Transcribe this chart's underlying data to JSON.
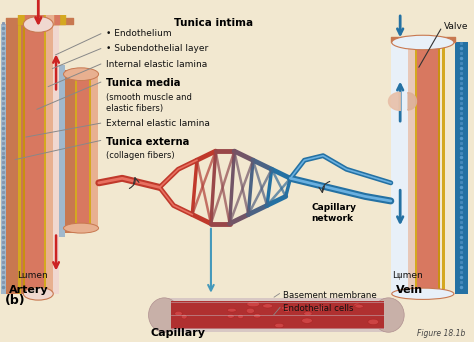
{
  "bg_color": "#f2e8d0",
  "figure_label": "(b)",
  "figure_ref": "Figure 18.1b",
  "labels": {
    "tunica_intima": "Tunica intima",
    "endothelium": "• Endothelium",
    "subendothelial": "• Subendothelial layer",
    "internal_elastic": "Internal elastic lamina",
    "tunica_media": "Tunica media",
    "tunica_media_sub": "(smooth muscle and\nelastic fibers)",
    "external_elastic": "External elastic lamina",
    "tunica_externa": "Tunica externa",
    "tunica_externa_sub": "(collagen fibers)",
    "lumen_artery": "Lumen",
    "artery": "Artery",
    "lumen_vein": "Lumen",
    "vein": "Vein",
    "valve": "Valve",
    "capillary_network": "Capillary\nnetwork",
    "basement_membrane": "Basement membrane",
    "endothelial_cells": "Endothelial cells",
    "capillary": "Capillary"
  },
  "colors": {
    "artery_red": "#c0392b",
    "artery_lumen": "#e8a090",
    "vein_blue": "#2471a3",
    "vein_lumen": "#d0e4f0",
    "tissue_outer_tan": "#c8855a",
    "tissue_mid_pink": "#d9856a",
    "tissue_inner_light": "#e8b090",
    "elastic_yellow": "#d4a820",
    "elastic_yellow2": "#c89010",
    "outer_dashed_blue": "#6090c0",
    "outer_dashed_red": "#cc4444",
    "bg": "#f2e8d0",
    "cap_net_red": "#c0392b",
    "cap_net_blue": "#2471a3",
    "cap_net_purple": "#9966bb",
    "capillary_outer": "#d8c0bc",
    "capillary_inner": "#c04040",
    "line_color": "#666666",
    "text_dark": "#111111",
    "arrow_blue": "#4499bb",
    "arrow_red": "#cc2222"
  }
}
